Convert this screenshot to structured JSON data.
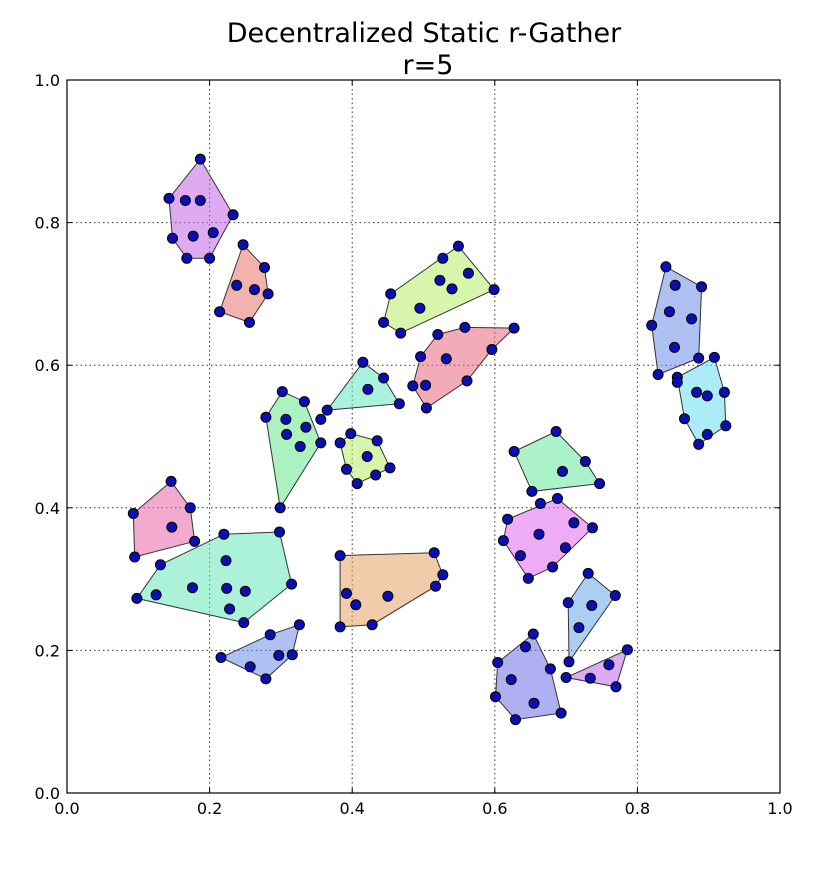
{
  "chart_data": {
    "type": "scatter",
    "title": "Decentralized Static r-Gather",
    "subtitle": "r=5",
    "xlabel": "",
    "ylabel": "",
    "xlim": [
      0.0,
      1.0
    ],
    "ylim": [
      0.0,
      1.0
    ],
    "x_ticks": [
      "0.0",
      "0.2",
      "0.4",
      "0.6",
      "0.8",
      "1.0"
    ],
    "y_ticks": [
      "0.0",
      "0.2",
      "0.4",
      "0.6",
      "0.8",
      "1.0"
    ],
    "grid": true,
    "clusters": [
      {
        "color": "#c266e8",
        "hull": [
          [
            0.187,
            0.889
          ],
          [
            0.233,
            0.811
          ],
          [
            0.2,
            0.75
          ],
          [
            0.168,
            0.75
          ],
          [
            0.148,
            0.778
          ],
          [
            0.143,
            0.834
          ]
        ],
        "points": [
          [
            0.187,
            0.889
          ],
          [
            0.233,
            0.811
          ],
          [
            0.2,
            0.75
          ],
          [
            0.168,
            0.75
          ],
          [
            0.148,
            0.778
          ],
          [
            0.143,
            0.834
          ],
          [
            0.166,
            0.831
          ],
          [
            0.187,
            0.831
          ],
          [
            0.205,
            0.786
          ],
          [
            0.177,
            0.781
          ]
        ]
      },
      {
        "color": "#e8756e",
        "hull": [
          [
            0.247,
            0.769
          ],
          [
            0.277,
            0.737
          ],
          [
            0.282,
            0.7
          ],
          [
            0.256,
            0.66
          ],
          [
            0.214,
            0.675
          ]
        ],
        "points": [
          [
            0.247,
            0.769
          ],
          [
            0.277,
            0.737
          ],
          [
            0.282,
            0.7
          ],
          [
            0.256,
            0.66
          ],
          [
            0.214,
            0.675
          ],
          [
            0.238,
            0.712
          ],
          [
            0.263,
            0.706
          ]
        ]
      },
      {
        "color": "#b8ee66",
        "hull": [
          [
            0.549,
            0.767
          ],
          [
            0.599,
            0.706
          ],
          [
            0.468,
            0.645
          ],
          [
            0.444,
            0.66
          ],
          [
            0.454,
            0.7
          ]
        ],
        "points": [
          [
            0.549,
            0.767
          ],
          [
            0.599,
            0.706
          ],
          [
            0.468,
            0.645
          ],
          [
            0.444,
            0.66
          ],
          [
            0.454,
            0.7
          ],
          [
            0.527,
            0.75
          ],
          [
            0.563,
            0.729
          ],
          [
            0.523,
            0.719
          ],
          [
            0.54,
            0.707
          ],
          [
            0.495,
            0.68
          ]
        ]
      },
      {
        "color": "#e8667c",
        "hull": [
          [
            0.627,
            0.652
          ],
          [
            0.558,
            0.653
          ],
          [
            0.52,
            0.643
          ],
          [
            0.496,
            0.612
          ],
          [
            0.485,
            0.571
          ],
          [
            0.504,
            0.54
          ],
          [
            0.561,
            0.578
          ],
          [
            0.596,
            0.622
          ]
        ],
        "points": [
          [
            0.627,
            0.652
          ],
          [
            0.558,
            0.653
          ],
          [
            0.52,
            0.643
          ],
          [
            0.496,
            0.612
          ],
          [
            0.485,
            0.571
          ],
          [
            0.504,
            0.54
          ],
          [
            0.561,
            0.578
          ],
          [
            0.596,
            0.622
          ],
          [
            0.532,
            0.609
          ],
          [
            0.503,
            0.572
          ]
        ]
      },
      {
        "color": "#6e8ce8",
        "hull": [
          [
            0.84,
            0.738
          ],
          [
            0.89,
            0.71
          ],
          [
            0.886,
            0.61
          ],
          [
            0.829,
            0.587
          ],
          [
            0.82,
            0.656
          ]
        ],
        "points": [
          [
            0.84,
            0.738
          ],
          [
            0.89,
            0.71
          ],
          [
            0.886,
            0.61
          ],
          [
            0.829,
            0.587
          ],
          [
            0.82,
            0.656
          ],
          [
            0.853,
            0.712
          ],
          [
            0.845,
            0.675
          ],
          [
            0.876,
            0.665
          ],
          [
            0.852,
            0.625
          ]
        ]
      },
      {
        "color": "#66dcee",
        "hull": [
          [
            0.908,
            0.611
          ],
          [
            0.922,
            0.562
          ],
          [
            0.924,
            0.515
          ],
          [
            0.886,
            0.489
          ],
          [
            0.866,
            0.525
          ],
          [
            0.856,
            0.583
          ]
        ],
        "points": [
          [
            0.908,
            0.611
          ],
          [
            0.922,
            0.562
          ],
          [
            0.924,
            0.515
          ],
          [
            0.886,
            0.489
          ],
          [
            0.866,
            0.525
          ],
          [
            0.856,
            0.583
          ],
          [
            0.856,
            0.576
          ],
          [
            0.883,
            0.562
          ],
          [
            0.898,
            0.557
          ],
          [
            0.898,
            0.503
          ]
        ]
      },
      {
        "color": "#66e8c2",
        "hull": [
          [
            0.415,
            0.604
          ],
          [
            0.444,
            0.582
          ],
          [
            0.466,
            0.546
          ],
          [
            0.365,
            0.537
          ]
        ],
        "points": [
          [
            0.415,
            0.604
          ],
          [
            0.444,
            0.582
          ],
          [
            0.466,
            0.546
          ],
          [
            0.365,
            0.537
          ],
          [
            0.422,
            0.566
          ]
        ]
      },
      {
        "color": "#66e88c",
        "hull": [
          [
            0.302,
            0.563
          ],
          [
            0.333,
            0.549
          ],
          [
            0.356,
            0.491
          ],
          [
            0.299,
            0.4
          ],
          [
            0.279,
            0.527
          ]
        ],
        "points": [
          [
            0.302,
            0.563
          ],
          [
            0.333,
            0.549
          ],
          [
            0.356,
            0.491
          ],
          [
            0.299,
            0.4
          ],
          [
            0.279,
            0.527
          ],
          [
            0.307,
            0.524
          ],
          [
            0.335,
            0.513
          ],
          [
            0.308,
            0.503
          ],
          [
            0.327,
            0.486
          ],
          [
            0.356,
            0.524
          ]
        ]
      },
      {
        "color": "#b8ee66",
        "hull": [
          [
            0.398,
            0.504
          ],
          [
            0.435,
            0.494
          ],
          [
            0.453,
            0.456
          ],
          [
            0.407,
            0.434
          ],
          [
            0.392,
            0.454
          ],
          [
            0.383,
            0.491
          ]
        ],
        "points": [
          [
            0.398,
            0.504
          ],
          [
            0.435,
            0.494
          ],
          [
            0.453,
            0.456
          ],
          [
            0.407,
            0.434
          ],
          [
            0.392,
            0.454
          ],
          [
            0.383,
            0.491
          ],
          [
            0.421,
            0.472
          ],
          [
            0.433,
            0.446
          ]
        ]
      },
      {
        "color": "#66e89a",
        "hull": [
          [
            0.686,
            0.507
          ],
          [
            0.727,
            0.465
          ],
          [
            0.747,
            0.434
          ],
          [
            0.652,
            0.423
          ],
          [
            0.627,
            0.479
          ]
        ],
        "points": [
          [
            0.686,
            0.507
          ],
          [
            0.727,
            0.465
          ],
          [
            0.747,
            0.434
          ],
          [
            0.652,
            0.423
          ],
          [
            0.627,
            0.479
          ],
          [
            0.695,
            0.451
          ]
        ]
      },
      {
        "color": "#e866a8",
        "hull": [
          [
            0.146,
            0.437
          ],
          [
            0.173,
            0.4
          ],
          [
            0.179,
            0.353
          ],
          [
            0.095,
            0.331
          ],
          [
            0.093,
            0.392
          ]
        ],
        "points": [
          [
            0.146,
            0.437
          ],
          [
            0.173,
            0.4
          ],
          [
            0.179,
            0.353
          ],
          [
            0.095,
            0.331
          ],
          [
            0.093,
            0.392
          ],
          [
            0.147,
            0.373
          ]
        ]
      },
      {
        "color": "#66e8b8",
        "hull": [
          [
            0.298,
            0.366
          ],
          [
            0.315,
            0.293
          ],
          [
            0.248,
            0.239
          ],
          [
            0.098,
            0.273
          ],
          [
            0.131,
            0.32
          ],
          [
            0.22,
            0.363
          ]
        ],
        "points": [
          [
            0.298,
            0.366
          ],
          [
            0.315,
            0.293
          ],
          [
            0.248,
            0.239
          ],
          [
            0.098,
            0.273
          ],
          [
            0.131,
            0.32
          ],
          [
            0.22,
            0.363
          ],
          [
            0.223,
            0.326
          ],
          [
            0.176,
            0.288
          ],
          [
            0.224,
            0.287
          ],
          [
            0.25,
            0.283
          ],
          [
            0.228,
            0.258
          ],
          [
            0.125,
            0.278
          ]
        ]
      },
      {
        "color": "#e8a066",
        "hull": [
          [
            0.383,
            0.333
          ],
          [
            0.515,
            0.337
          ],
          [
            0.527,
            0.306
          ],
          [
            0.517,
            0.29
          ],
          [
            0.428,
            0.236
          ],
          [
            0.383,
            0.233
          ]
        ],
        "points": [
          [
            0.383,
            0.333
          ],
          [
            0.515,
            0.337
          ],
          [
            0.527,
            0.306
          ],
          [
            0.517,
            0.29
          ],
          [
            0.428,
            0.236
          ],
          [
            0.383,
            0.233
          ],
          [
            0.392,
            0.28
          ],
          [
            0.405,
            0.264
          ],
          [
            0.45,
            0.276
          ]
        ]
      },
      {
        "color": "#e066ee",
        "hull": [
          [
            0.688,
            0.413
          ],
          [
            0.737,
            0.372
          ],
          [
            0.681,
            0.317
          ],
          [
            0.647,
            0.301
          ],
          [
            0.612,
            0.354
          ],
          [
            0.618,
            0.384
          ]
        ],
        "points": [
          [
            0.688,
            0.413
          ],
          [
            0.737,
            0.372
          ],
          [
            0.681,
            0.317
          ],
          [
            0.647,
            0.301
          ],
          [
            0.612,
            0.354
          ],
          [
            0.618,
            0.384
          ],
          [
            0.664,
            0.406
          ],
          [
            0.711,
            0.379
          ],
          [
            0.662,
            0.363
          ],
          [
            0.636,
            0.333
          ],
          [
            0.699,
            0.344
          ]
        ]
      },
      {
        "color": "#66a8e8",
        "hull": [
          [
            0.731,
            0.308
          ],
          [
            0.769,
            0.277
          ],
          [
            0.704,
            0.184
          ],
          [
            0.703,
            0.267
          ]
        ],
        "points": [
          [
            0.731,
            0.308
          ],
          [
            0.769,
            0.277
          ],
          [
            0.704,
            0.184
          ],
          [
            0.703,
            0.267
          ],
          [
            0.736,
            0.263
          ],
          [
            0.718,
            0.232
          ]
        ]
      },
      {
        "color": "#6e8ce8",
        "hull": [
          [
            0.326,
            0.236
          ],
          [
            0.285,
            0.222
          ],
          [
            0.216,
            0.19
          ],
          [
            0.279,
            0.16
          ],
          [
            0.316,
            0.194
          ]
        ],
        "points": [
          [
            0.326,
            0.236
          ],
          [
            0.285,
            0.222
          ],
          [
            0.216,
            0.19
          ],
          [
            0.279,
            0.16
          ],
          [
            0.316,
            0.194
          ],
          [
            0.297,
            0.193
          ],
          [
            0.257,
            0.177
          ]
        ]
      },
      {
        "color": "#6e70e8",
        "hull": [
          [
            0.654,
            0.223
          ],
          [
            0.678,
            0.174
          ],
          [
            0.693,
            0.112
          ],
          [
            0.629,
            0.103
          ],
          [
            0.601,
            0.135
          ],
          [
            0.604,
            0.183
          ]
        ],
        "points": [
          [
            0.654,
            0.223
          ],
          [
            0.678,
            0.174
          ],
          [
            0.693,
            0.112
          ],
          [
            0.629,
            0.103
          ],
          [
            0.601,
            0.135
          ],
          [
            0.604,
            0.183
          ],
          [
            0.643,
            0.205
          ],
          [
            0.623,
            0.159
          ],
          [
            0.655,
            0.126
          ]
        ]
      },
      {
        "color": "#c266e8",
        "hull": [
          [
            0.786,
            0.201
          ],
          [
            0.77,
            0.149
          ],
          [
            0.7,
            0.162
          ]
        ],
        "points": [
          [
            0.786,
            0.201
          ],
          [
            0.77,
            0.149
          ],
          [
            0.7,
            0.162
          ],
          [
            0.76,
            0.18
          ],
          [
            0.734,
            0.161
          ]
        ]
      }
    ]
  }
}
